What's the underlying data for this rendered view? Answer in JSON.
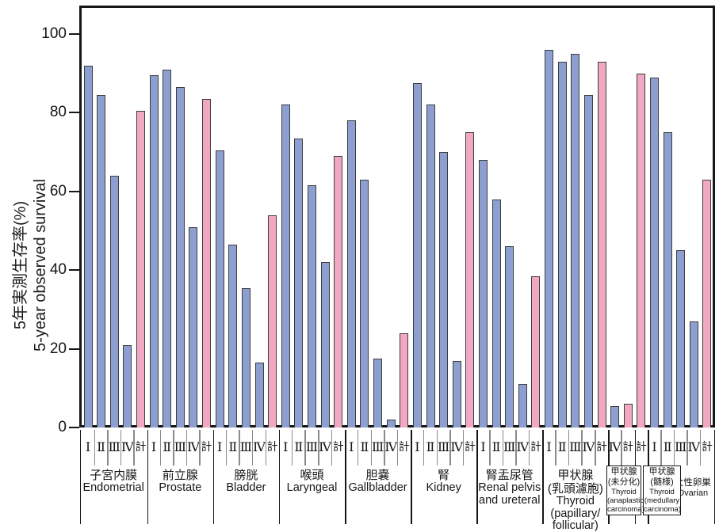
{
  "chart_data": {
    "type": "bar",
    "y_axis": {
      "label_jp": "5年実測生存率(%)",
      "label_en": "5-year observed survival",
      "ticks": [
        0,
        20,
        40,
        60,
        80,
        100
      ],
      "range": [
        0,
        100
      ]
    },
    "legend": {
      "stage_bar_color": "#8c9fd0",
      "total_bar_color": "#f2a7c3",
      "outline_color": "#3d3d3d"
    },
    "total_label": "計",
    "groups": [
      {
        "jp": "子宮内膜",
        "en": [
          "Endometrial"
        ],
        "bars": [
          [
            "Ⅰ",
            92
          ],
          [
            "Ⅱ",
            84.5
          ],
          [
            "Ⅲ",
            64
          ],
          [
            "Ⅳ",
            21
          ],
          [
            "計",
            80.5
          ]
        ]
      },
      {
        "jp": "前立腺",
        "en": [
          "Prostate"
        ],
        "bars": [
          [
            "Ⅰ",
            89.5
          ],
          [
            "Ⅱ",
            91
          ],
          [
            "Ⅲ",
            86.5
          ],
          [
            "Ⅳ",
            51
          ],
          [
            "計",
            83.5
          ]
        ]
      },
      {
        "jp": "膀胱",
        "en": [
          "Bladder"
        ],
        "bars": [
          [
            "Ⅰ",
            70.5
          ],
          [
            "Ⅱ",
            46.5
          ],
          [
            "Ⅲ",
            35.5
          ],
          [
            "Ⅳ",
            16.5
          ],
          [
            "計",
            54
          ]
        ]
      },
      {
        "jp": "喉頭",
        "en": [
          "Laryngeal"
        ],
        "bars": [
          [
            "Ⅰ",
            82
          ],
          [
            "Ⅱ",
            73.5
          ],
          [
            "Ⅲ",
            61.5
          ],
          [
            "Ⅳ",
            42
          ],
          [
            "計",
            69
          ]
        ]
      },
      {
        "jp": "胆嚢",
        "en": [
          "Gallbladder"
        ],
        "bars": [
          [
            "Ⅰ",
            78
          ],
          [
            "Ⅱ",
            63
          ],
          [
            "Ⅲ",
            17.5
          ],
          [
            "Ⅳ",
            2
          ],
          [
            "計",
            24
          ]
        ]
      },
      {
        "jp": "腎",
        "en": [
          "Kidney"
        ],
        "bars": [
          [
            "Ⅰ",
            87.5
          ],
          [
            "Ⅱ",
            82
          ],
          [
            "Ⅲ",
            70
          ],
          [
            "Ⅳ",
            17
          ],
          [
            "計",
            75
          ]
        ]
      },
      {
        "jp": "腎盂尿管",
        "en": [
          "Renal pelvis",
          "and ureteral"
        ],
        "bars": [
          [
            "Ⅰ",
            68
          ],
          [
            "Ⅱ",
            58
          ],
          [
            "Ⅲ",
            46
          ],
          [
            "Ⅳ",
            11
          ],
          [
            "計",
            38.5
          ]
        ]
      },
      {
        "jp": "甲状腺",
        "jp2": "(乳頭濾胞)",
        "en": [
          "Thyroid",
          "(papillary/",
          "follicular)"
        ],
        "bars": [
          [
            "Ⅰ",
            96
          ],
          [
            "Ⅱ",
            93
          ],
          [
            "Ⅲ",
            95
          ],
          [
            "Ⅳ",
            84.5
          ],
          [
            "計",
            93
          ]
        ]
      },
      {
        "jp": "甲状腺",
        "jp2": "(未分化)",
        "en": [
          "Thyroid",
          "(anaplastic",
          "carcinoma)"
        ],
        "boxed": true,
        "bars": [
          [
            "Ⅳ",
            5.5
          ],
          [
            "計",
            6
          ]
        ]
      },
      {
        "jp": "甲状腺",
        "jp2": "(髄様)",
        "en": [
          "Thyroid",
          "(medullary",
          "carcinoma)"
        ],
        "boxed": true,
        "bars": [
          [
            "計",
            90
          ]
        ]
      },
      {
        "jp": "女性卵巣",
        "en": [
          "Ovarian"
        ],
        "small": true,
        "bars": [
          [
            "Ⅰ",
            89
          ],
          [
            "Ⅱ",
            75
          ],
          [
            "Ⅲ",
            45
          ],
          [
            "Ⅳ",
            27
          ],
          [
            "計",
            63
          ]
        ]
      }
    ]
  }
}
